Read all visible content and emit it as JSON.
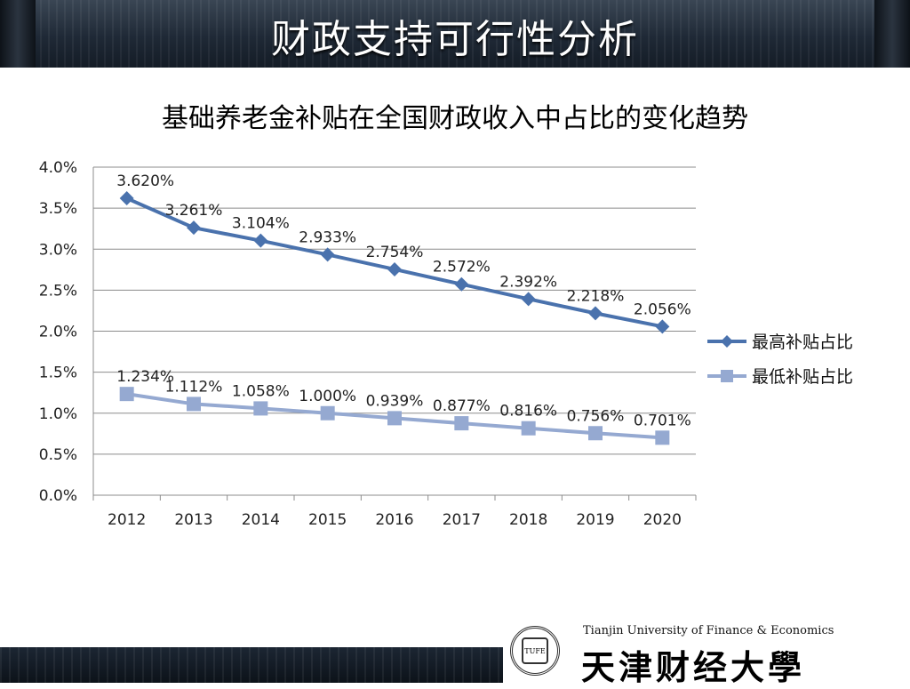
{
  "slide": {
    "title": "财政支持可行性分析",
    "chart_title": "基础养老金补贴在全国财政收入中占比的变化趋势"
  },
  "logo": {
    "seal_text": "TUFE",
    "english_name": "Tianjin University of Finance & Economics",
    "chinese_name": "天津财经大學"
  },
  "colors": {
    "series_high": "#4a72ad",
    "series_low": "#95a9d1",
    "gridline": "#8c8c8c"
  },
  "chart_data": {
    "type": "line",
    "categories": [
      "2012",
      "2013",
      "2014",
      "2015",
      "2016",
      "2017",
      "2018",
      "2019",
      "2020"
    ],
    "series": [
      {
        "name": "最高补贴占比",
        "values": [
          3.62,
          3.261,
          3.104,
          2.933,
          2.754,
          2.572,
          2.392,
          2.218,
          2.056
        ],
        "labels": [
          "3.620%",
          "3.261%",
          "3.104%",
          "2.933%",
          "2.754%",
          "2.572%",
          "2.392%",
          "2.218%",
          "2.056%"
        ],
        "marker": "diamond"
      },
      {
        "name": "最低补贴占比",
        "values": [
          1.234,
          1.112,
          1.058,
          1.0,
          0.939,
          0.877,
          0.816,
          0.756,
          0.701
        ],
        "labels": [
          "1.234%",
          "1.112%",
          "1.058%",
          "1.000%",
          "0.939%",
          "0.877%",
          "0.816%",
          "0.756%",
          "0.701%"
        ],
        "marker": "square"
      }
    ],
    "y_ticks": [
      "0.0%",
      "0.5%",
      "1.0%",
      "1.5%",
      "2.0%",
      "2.5%",
      "3.0%",
      "3.5%",
      "4.0%"
    ],
    "ylim": [
      0,
      4.0
    ],
    "grid": true,
    "legend_position": "right"
  }
}
